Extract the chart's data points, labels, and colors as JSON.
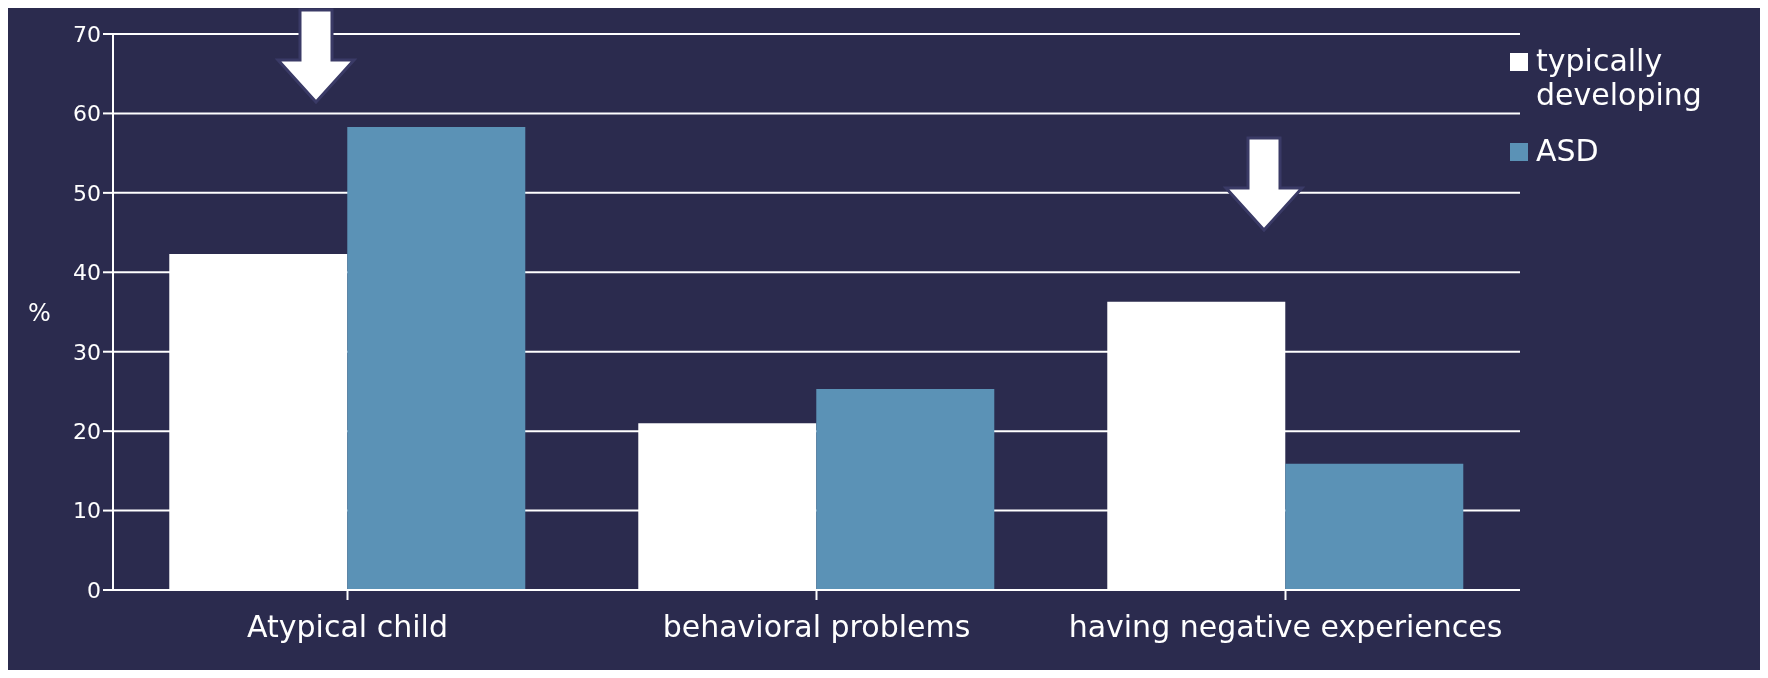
{
  "chart_data": {
    "type": "bar",
    "ylabel": "%",
    "categories": [
      "Atypical child",
      "behavioral problems",
      "having negative experiences"
    ],
    "series": [
      {
        "name": "typically developing",
        "color": "#ffffff",
        "values": [
          42.3,
          21.0,
          36.3
        ]
      },
      {
        "name": "ASD",
        "color": "#5b92b6",
        "values": [
          58.3,
          25.3,
          15.9
        ]
      }
    ],
    "ylim": [
      0,
      70
    ],
    "yticks": [
      0,
      10,
      20,
      30,
      40,
      50,
      60,
      70
    ],
    "grid": "y",
    "legend": "top right"
  }
}
